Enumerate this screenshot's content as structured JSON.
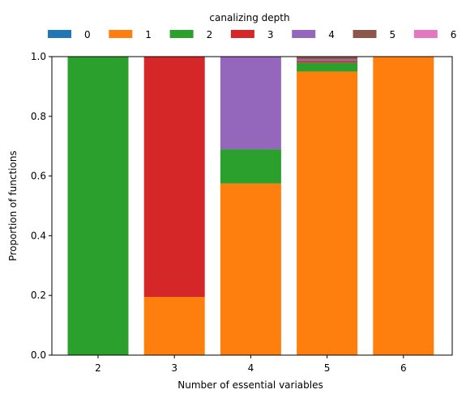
{
  "chart_data": {
    "type": "bar",
    "stacked": true,
    "legend_title": "canalizing depth",
    "legend_position": "top",
    "xlabel": "Number of essential variables",
    "ylabel": "Proportion of functions",
    "categories": [
      "2",
      "3",
      "4",
      "5",
      "6"
    ],
    "yticks": [
      "0.0",
      "0.2",
      "0.4",
      "0.6",
      "0.8",
      "1.0"
    ],
    "ylim": [
      0,
      1
    ],
    "grid": false,
    "series": [
      {
        "name": "0",
        "color": "#1f77b4",
        "values": [
          0,
          0,
          0,
          0,
          0
        ]
      },
      {
        "name": "1",
        "color": "#ff7f0e",
        "values": [
          0,
          0.195,
          0.575,
          0.95,
          1.0
        ]
      },
      {
        "name": "2",
        "color": "#2ca02c",
        "values": [
          1.0,
          0,
          0.115,
          0.03,
          0
        ]
      },
      {
        "name": "3",
        "color": "#d62728",
        "values": [
          0,
          0.805,
          0,
          0.005,
          0
        ]
      },
      {
        "name": "4",
        "color": "#9467bd",
        "values": [
          0,
          0,
          0.31,
          0.005,
          0
        ]
      },
      {
        "name": "5",
        "color": "#8c564b",
        "values": [
          0,
          0,
          0,
          0.01,
          0
        ]
      },
      {
        "name": "6",
        "color": "#e377c2",
        "values": [
          0,
          0,
          0,
          0,
          0
        ]
      }
    ]
  }
}
